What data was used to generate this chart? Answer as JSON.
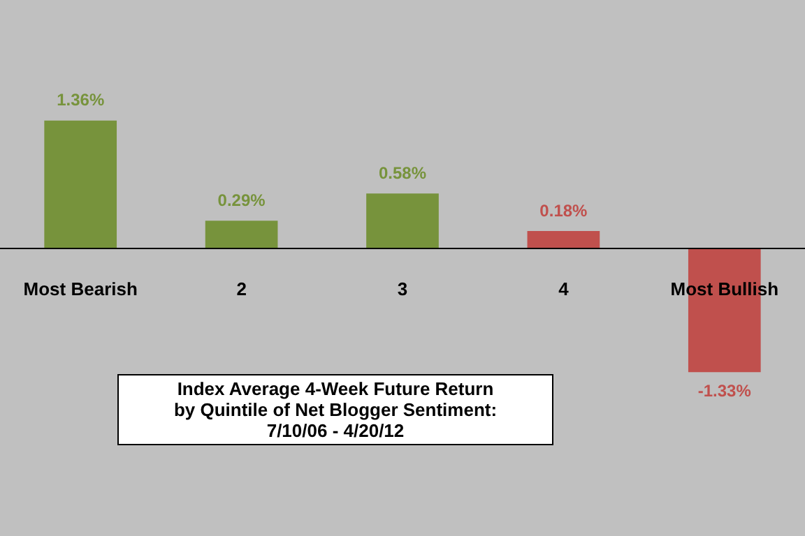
{
  "chart_data": {
    "type": "bar",
    "title": "Index Average 4-Week Future Return\nby Quintile of Net Blogger Sentiment:\n7/10/06 - 4/20/12",
    "categories": [
      "Most Bearish",
      "2",
      "3",
      "4",
      "Most Bullish"
    ],
    "values": [
      1.36,
      0.29,
      0.58,
      0.18,
      -1.33
    ],
    "colors": [
      "#77933c",
      "#77933c",
      "#77933c",
      "#c0504d",
      "#c0504d"
    ],
    "value_labels": [
      "1.36%",
      "0.29%",
      "0.58%",
      "0.18%",
      "-1.33%"
    ],
    "legend": false
  }
}
